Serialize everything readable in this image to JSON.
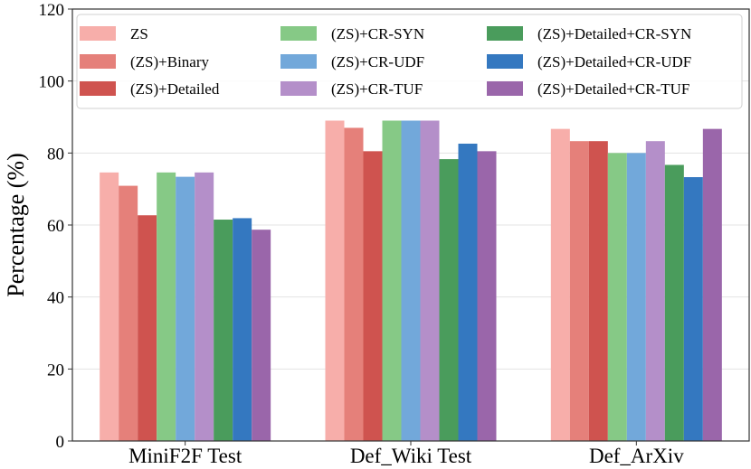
{
  "chart_data": {
    "type": "bar",
    "title": "",
    "xlabel": "",
    "ylabel": "Percentage (%)",
    "ylim": [
      0,
      120
    ],
    "yticks": [
      0,
      20,
      40,
      60,
      80,
      100,
      120
    ],
    "grid": "horizontal",
    "legend_position": "top",
    "categories": [
      "MiniF2F Test",
      "Def_Wiki Test",
      "Def_ArXiv"
    ],
    "series": [
      {
        "name": "ZS",
        "color": "#f7aeaa",
        "values": [
          74.6,
          89.0,
          86.7
        ]
      },
      {
        "name": "(ZS)+Binary",
        "color": "#e5807a",
        "values": [
          70.9,
          87.0,
          83.3
        ]
      },
      {
        "name": "(ZS)+Detailed",
        "color": "#cf534f",
        "values": [
          62.7,
          80.5,
          83.3
        ]
      },
      {
        "name": "(ZS)+CR-SYN",
        "color": "#86c986",
        "values": [
          74.6,
          89.0,
          80.0
        ]
      },
      {
        "name": "(ZS)+CR-UDF",
        "color": "#72a8da",
        "values": [
          73.4,
          89.0,
          80.0
        ]
      },
      {
        "name": "(ZS)+CR-TUF",
        "color": "#b48fc9",
        "values": [
          74.6,
          89.0,
          83.3
        ]
      },
      {
        "name": "(ZS)+Detailed+CR-SYN",
        "color": "#4a9c5c",
        "values": [
          61.5,
          78.3,
          76.7
        ]
      },
      {
        "name": "(ZS)+Detailed+CR-UDF",
        "color": "#3478c0",
        "values": [
          61.9,
          82.6,
          73.3
        ]
      },
      {
        "name": "(ZS)+Detailed+CR-TUF",
        "color": "#9a66aa",
        "values": [
          58.7,
          80.5,
          86.7
        ]
      }
    ]
  }
}
